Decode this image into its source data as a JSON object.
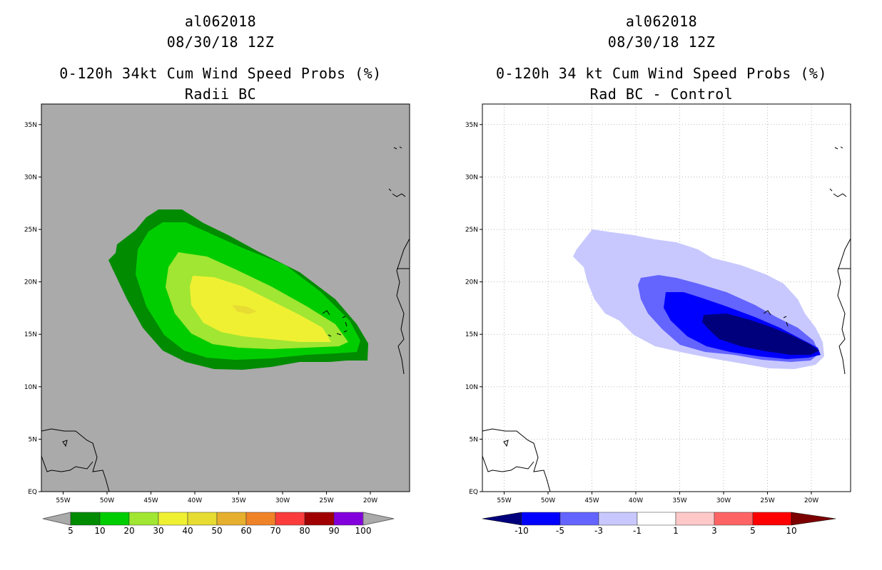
{
  "panels": [
    {
      "storm_id": "al062018",
      "datetime": "08/30/18 12Z",
      "title": "0-120h 34kt Cum Wind Speed Probs (%)",
      "subtitle": "Radii BC",
      "background_color": "#aaaaaa",
      "colorbar": {
        "labels": [
          "5",
          "10",
          "20",
          "30",
          "40",
          "50",
          "60",
          "70",
          "80",
          "90",
          "100"
        ],
        "colors": [
          "#008b00",
          "#00cd00",
          "#a0e632",
          "#f0f032",
          "#e6dc32",
          "#e6af2d",
          "#f08228",
          "#fa3c3c",
          "#a00000",
          "#8200dc"
        ],
        "extend_color": "#aaaaaa"
      }
    },
    {
      "storm_id": "al062018",
      "datetime": "08/30/18 12Z",
      "title": "0-120h 34 kt Cum Wind Speed Probs (%)",
      "subtitle": "Rad BC - Control",
      "background_color": "#ffffff",
      "colorbar": {
        "labels": [
          "-10",
          "-5",
          "-3",
          "-1",
          "1",
          "3",
          "5",
          "10"
        ],
        "colors": [
          "#0000ff",
          "#6464ff",
          "#c8c8ff",
          "#ffffff",
          "#ffc8c8",
          "#ff6464",
          "#ff0000"
        ],
        "extend_low": "#00007d",
        "extend_high": "#7d0000"
      }
    }
  ],
  "map": {
    "lat_labels": [
      "35N",
      "30N",
      "25N",
      "20N",
      "15N",
      "10N",
      "5N",
      "EQ"
    ],
    "lon_labels": [
      "55W",
      "50W",
      "45W",
      "40W",
      "35W",
      "30W",
      "25W",
      "20W"
    ]
  },
  "colors": {
    "coast": "#000000",
    "grid": "#bbbbbb"
  }
}
